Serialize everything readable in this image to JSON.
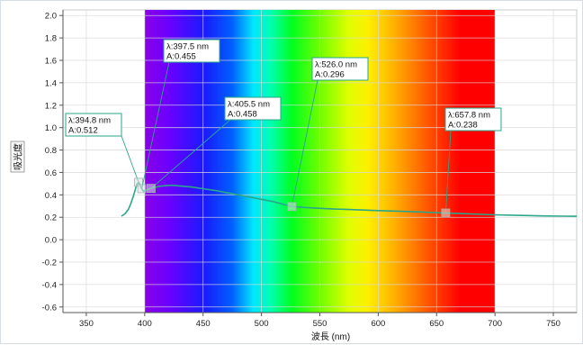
{
  "chart_data": {
    "type": "line",
    "xlabel": "波長 (nm)",
    "ylabel": "吸光度",
    "xlim": [
      330,
      770
    ],
    "ylim": [
      -0.65,
      2.05
    ],
    "xticks": [
      "350",
      "400",
      "450",
      "500",
      "550",
      "600",
      "650",
      "700",
      "750"
    ],
    "yticks": [
      "2.0",
      "1.8",
      "1.6",
      "1.4",
      "1.2",
      "1.0",
      "0.8",
      "0.6",
      "0.4",
      "0.2",
      "0.0",
      "-0.2",
      "-0.4",
      "-0.6"
    ],
    "grid": true,
    "spectrum_band": [
      400,
      700
    ],
    "series": [
      {
        "color": "#2aa68a",
        "x": [
          380,
          383,
          386,
          388,
          390,
          392,
          393,
          394.8,
          396,
          397.5,
          399,
          401,
          403,
          405.5,
          410,
          415,
          420,
          425,
          430,
          440,
          450,
          460,
          470,
          480,
          490,
          500,
          510,
          526,
          540,
          560,
          580,
          600,
          620,
          640,
          657.8,
          680,
          700,
          720,
          740,
          760,
          770
        ],
        "y": [
          0.21,
          0.23,
          0.27,
          0.32,
          0.38,
          0.45,
          0.49,
          0.512,
          0.49,
          0.455,
          0.43,
          0.44,
          0.45,
          0.458,
          0.47,
          0.48,
          0.485,
          0.485,
          0.48,
          0.47,
          0.455,
          0.44,
          0.42,
          0.4,
          0.38,
          0.36,
          0.34,
          0.296,
          0.285,
          0.275,
          0.268,
          0.26,
          0.253,
          0.245,
          0.238,
          0.23,
          0.222,
          0.217,
          0.212,
          0.21,
          0.209
        ]
      }
    ],
    "annotations": [
      {
        "lambda": "λ:394.8 nm",
        "abs": "A:0.512",
        "x": 394.8,
        "y": 0.512
      },
      {
        "lambda": "λ:397.5 nm",
        "abs": "A:0.455",
        "x": 397.5,
        "y": 0.455
      },
      {
        "lambda": "λ:405.5 nm",
        "abs": "A:0.458",
        "x": 405.5,
        "y": 0.458
      },
      {
        "lambda": "λ:526.0 nm",
        "abs": "A:0.296",
        "x": 526.0,
        "y": 0.296
      },
      {
        "lambda": "λ:657.8 nm",
        "abs": "A:0.238",
        "x": 657.8,
        "y": 0.238
      }
    ],
    "colors": {
      "line": "#2aa68a",
      "grid": "#d9d9d9",
      "annotation_border": "#2aa68a"
    }
  }
}
